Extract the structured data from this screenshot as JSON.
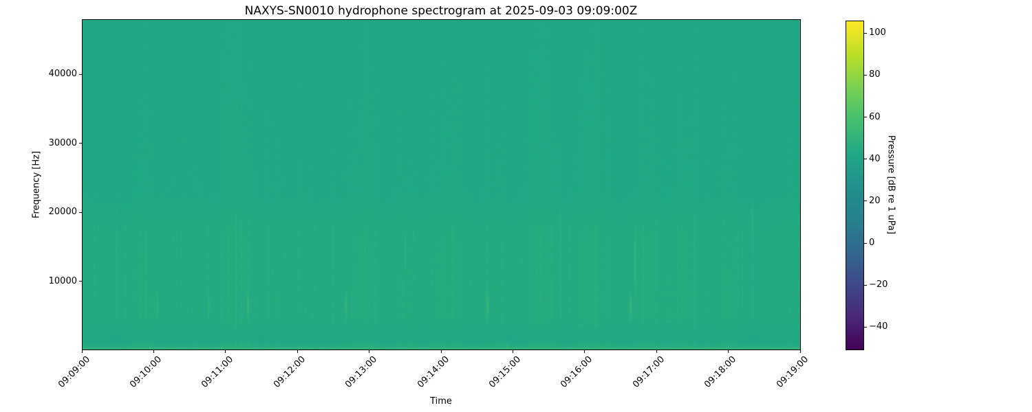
{
  "chart_data": {
    "type": "heatmap",
    "title": "NAXYS-SN0010 hydrophone spectrogram at 2025-09-03 09:09:00Z",
    "xlabel": "Time",
    "ylabel": "Frequency [Hz]",
    "x_tick_labels": [
      "09:09:00",
      "09:10:00",
      "09:11:00",
      "09:12:00",
      "09:13:00",
      "09:14:00",
      "09:15:00",
      "09:16:00",
      "09:17:00",
      "09:18:00",
      "09:19:00"
    ],
    "x_start_utc": "09:09:00",
    "x_end_utc": "09:19:00",
    "x_span_seconds": 600,
    "ylim_hz": [
      0,
      48000
    ],
    "y_ticks": [
      {
        "value": 10000,
        "label": "10000"
      },
      {
        "value": 20000,
        "label": "20000"
      },
      {
        "value": 30000,
        "label": "30000"
      },
      {
        "value": 40000,
        "label": "40000"
      }
    ],
    "grid": false,
    "colorbar": {
      "label": "Pressure [dB re 1 uPa]",
      "clim_db": [
        -51,
        106
      ],
      "ticks": [
        {
          "value": 100,
          "label": "100"
        },
        {
          "value": 80,
          "label": "80"
        },
        {
          "value": 60,
          "label": "60"
        },
        {
          "value": 40,
          "label": "40"
        },
        {
          "value": 20,
          "label": "20"
        },
        {
          "value": 0,
          "label": "0"
        },
        {
          "value": -20,
          "label": "−20"
        },
        {
          "value": -40,
          "label": "−40"
        }
      ],
      "colormap": "viridis",
      "colormap_stops": [
        "#440154",
        "#482878",
        "#3e4989",
        "#31688e",
        "#26828e",
        "#21918c",
        "#22a884",
        "#44bf70",
        "#7ad151",
        "#bddf26",
        "#fde725"
      ]
    },
    "field": {
      "description": "Near-uniform broadband ambient noise around 43 dB with faint vertical time striations; slightly elevated band between ~3 and 21 kHz; bright narrow band below ~800 Hz peaking near 52 dB at the bottom edge; sparse faint transient blips near 6.5 kHz; subtle horizontal banding below 8 kHz in the last ~2.5 minutes.",
      "background_db": 43.0,
      "striation_db": 1.3,
      "elevated_band": {
        "freq_hz": [
          3000,
          21000
        ],
        "delta_db": 1.8
      },
      "low_freq_band": {
        "freq_hz": [
          0,
          800
        ],
        "peak_db": 52.0
      },
      "horizontal_banding": {
        "time_after": "09:17:00",
        "freq_below_hz": 8000,
        "delta_db": 0.5
      },
      "transients": [
        {
          "time": "09:10:02",
          "freq_hz": 6200,
          "delta_db": 6,
          "spread_hz": 2500
        },
        {
          "time": "09:10:45",
          "freq_hz": 6400,
          "delta_db": 5,
          "spread_hz": 2000
        },
        {
          "time": "09:11:18",
          "freq_hz": 6500,
          "delta_db": 8,
          "spread_hz": 2500
        },
        {
          "time": "09:12:40",
          "freq_hz": 6300,
          "delta_db": 8,
          "spread_hz": 2500
        },
        {
          "time": "09:13:30",
          "freq_hz": 14500,
          "delta_db": 4,
          "spread_hz": 4000
        },
        {
          "time": "09:14:38",
          "freq_hz": 6500,
          "delta_db": 9,
          "spread_hz": 2500
        },
        {
          "time": "09:14:55",
          "freq_hz": 300,
          "delta_db": 6,
          "spread_hz": 800
        },
        {
          "time": "09:16:38",
          "freq_hz": 6300,
          "delta_db": 9,
          "spread_hz": 2500
        },
        {
          "time": "09:16:42",
          "freq_hz": 13000,
          "delta_db": 6,
          "spread_hz": 7000
        },
        {
          "time": "09:18:20",
          "freq_hz": 19000,
          "delta_db": 4,
          "spread_hz": 3000
        }
      ],
      "seed": 1337
    }
  }
}
